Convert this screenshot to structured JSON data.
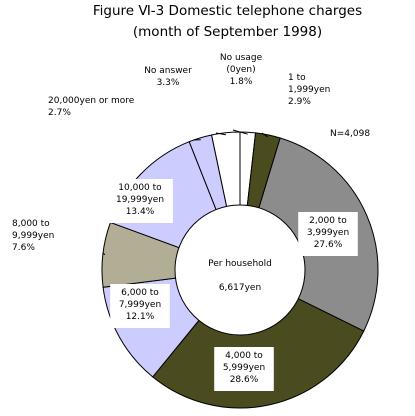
{
  "chart_data": {
    "type": "pie",
    "title": "Figure Ⅵ-3 Domestic telephone charges",
    "subtitle": "(month of September 1998)",
    "sample_size": "N=4,098",
    "center_label": "Per household",
    "center_value": "6,617yen",
    "slices": [
      {
        "label_lines": [
          "No usage",
          "(0yen)"
        ],
        "value": 1.8,
        "value_text": "1.8%",
        "color": "#ffffff"
      },
      {
        "label_lines": [
          "1 to",
          "1,999yen"
        ],
        "value": 2.9,
        "value_text": "2.9%",
        "color": "#4a4b1f"
      },
      {
        "label_lines": [
          "2,000 to",
          "3,999yen"
        ],
        "value": 27.6,
        "value_text": "27.6%",
        "color": "#8c8c8c"
      },
      {
        "label_lines": [
          "4,000 to",
          "5,999yen"
        ],
        "value": 28.6,
        "value_text": "28.6%",
        "color": "#4a4b1f"
      },
      {
        "label_lines": [
          "6,000 to",
          "7,999yen"
        ],
        "value": 12.1,
        "value_text": "12.1%",
        "color": "#ccccff"
      },
      {
        "label_lines": [
          "8,000 to",
          "9,999yen"
        ],
        "value": 7.6,
        "value_text": "7.6%",
        "color": "#b2ae96"
      },
      {
        "label_lines": [
          "10,000 to",
          "19,999yen"
        ],
        "value": 13.4,
        "value_text": "13.4%",
        "color": "#ccccff"
      },
      {
        "label_lines": [
          "20,000yen or more"
        ],
        "value": 2.7,
        "value_text": "2.7%",
        "color": "#ccccff"
      },
      {
        "label_lines": [
          "No answer"
        ],
        "value": 3.3,
        "value_text": "3.3%",
        "color": "#ffffff"
      }
    ]
  }
}
